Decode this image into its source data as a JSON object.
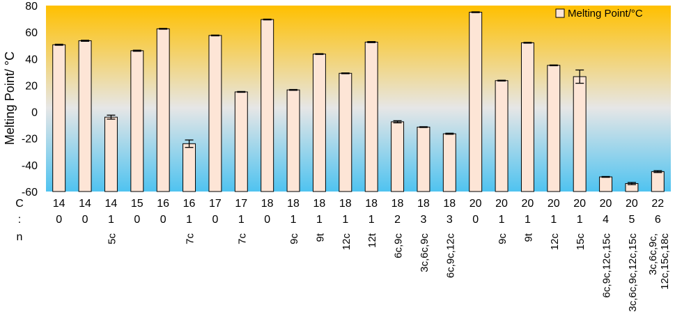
{
  "chart_data": {
    "type": "bar",
    "ylabel": "Melting Point/ °C",
    "ylim": [
      -60,
      80
    ],
    "yticks": [
      80,
      60,
      40,
      20,
      0,
      -20,
      -40,
      -60
    ],
    "legend": {
      "label": "Melting Point/°C",
      "placement": "top-right"
    },
    "row_labels": {
      "carbons": "C",
      "double_bonds": ":",
      "positions": "n"
    },
    "categories": [
      {
        "c": "14",
        "db": "0",
        "pos": ""
      },
      {
        "c": "14",
        "db": "0",
        "pos": ""
      },
      {
        "c": "14",
        "db": "1",
        "pos": "5c"
      },
      {
        "c": "15",
        "db": "0",
        "pos": ""
      },
      {
        "c": "16",
        "db": "0",
        "pos": ""
      },
      {
        "c": "16",
        "db": "1",
        "pos": "7c"
      },
      {
        "c": "17",
        "db": "0",
        "pos": ""
      },
      {
        "c": "17",
        "db": "1",
        "pos": "7c"
      },
      {
        "c": "18",
        "db": "0",
        "pos": ""
      },
      {
        "c": "18",
        "db": "1",
        "pos": "9c"
      },
      {
        "c": "18",
        "db": "1",
        "pos": "9t"
      },
      {
        "c": "18",
        "db": "1",
        "pos": "12c"
      },
      {
        "c": "18",
        "db": "1",
        "pos": "12t"
      },
      {
        "c": "18",
        "db": "2",
        "pos": "6c,9c"
      },
      {
        "c": "18",
        "db": "3",
        "pos": "3c,6c,9c"
      },
      {
        "c": "18",
        "db": "3",
        "pos": "6c,9c,12c"
      },
      {
        "c": "20",
        "db": "0",
        "pos": ""
      },
      {
        "c": "20",
        "db": "1",
        "pos": "9c"
      },
      {
        "c": "20",
        "db": "1",
        "pos": "9t"
      },
      {
        "c": "20",
        "db": "1",
        "pos": "12c"
      },
      {
        "c": "20",
        "db": "1",
        "pos": "15c"
      },
      {
        "c": "20",
        "db": "4",
        "pos": "6c,9c,12c,15c"
      },
      {
        "c": "20",
        "db": "5",
        "pos": "3c,6c,9c,12c,15c"
      },
      {
        "c": "22",
        "db": "6",
        "pos": "3c,6c,9c,12c,15c,18c"
      }
    ],
    "series": [
      {
        "name": "Melting Point/°C",
        "values": [
          50.5,
          53.5,
          -4,
          46,
          62.5,
          -24,
          57.5,
          15,
          69.5,
          16.5,
          43.5,
          29,
          52.5,
          -7.5,
          -11.5,
          -16.5,
          75,
          23.5,
          52,
          35,
          26.5,
          -49,
          -54,
          -45
        ],
        "errors": [
          0.4,
          0.4,
          1.5,
          0.4,
          0.3,
          2.8,
          0.3,
          0.3,
          0.3,
          0.3,
          0.3,
          0.3,
          0.4,
          0.8,
          0.3,
          0.4,
          0.3,
          0.3,
          0.3,
          0.3,
          5,
          0.3,
          0.8,
          0.7
        ]
      }
    ]
  },
  "colors": {
    "bar_fill": "#fde5d6",
    "bar_stroke": "#000000",
    "bg_top": "#ffc000",
    "bg_middle": "#e6e6e6",
    "bg_bottom": "#4fc3f0"
  }
}
